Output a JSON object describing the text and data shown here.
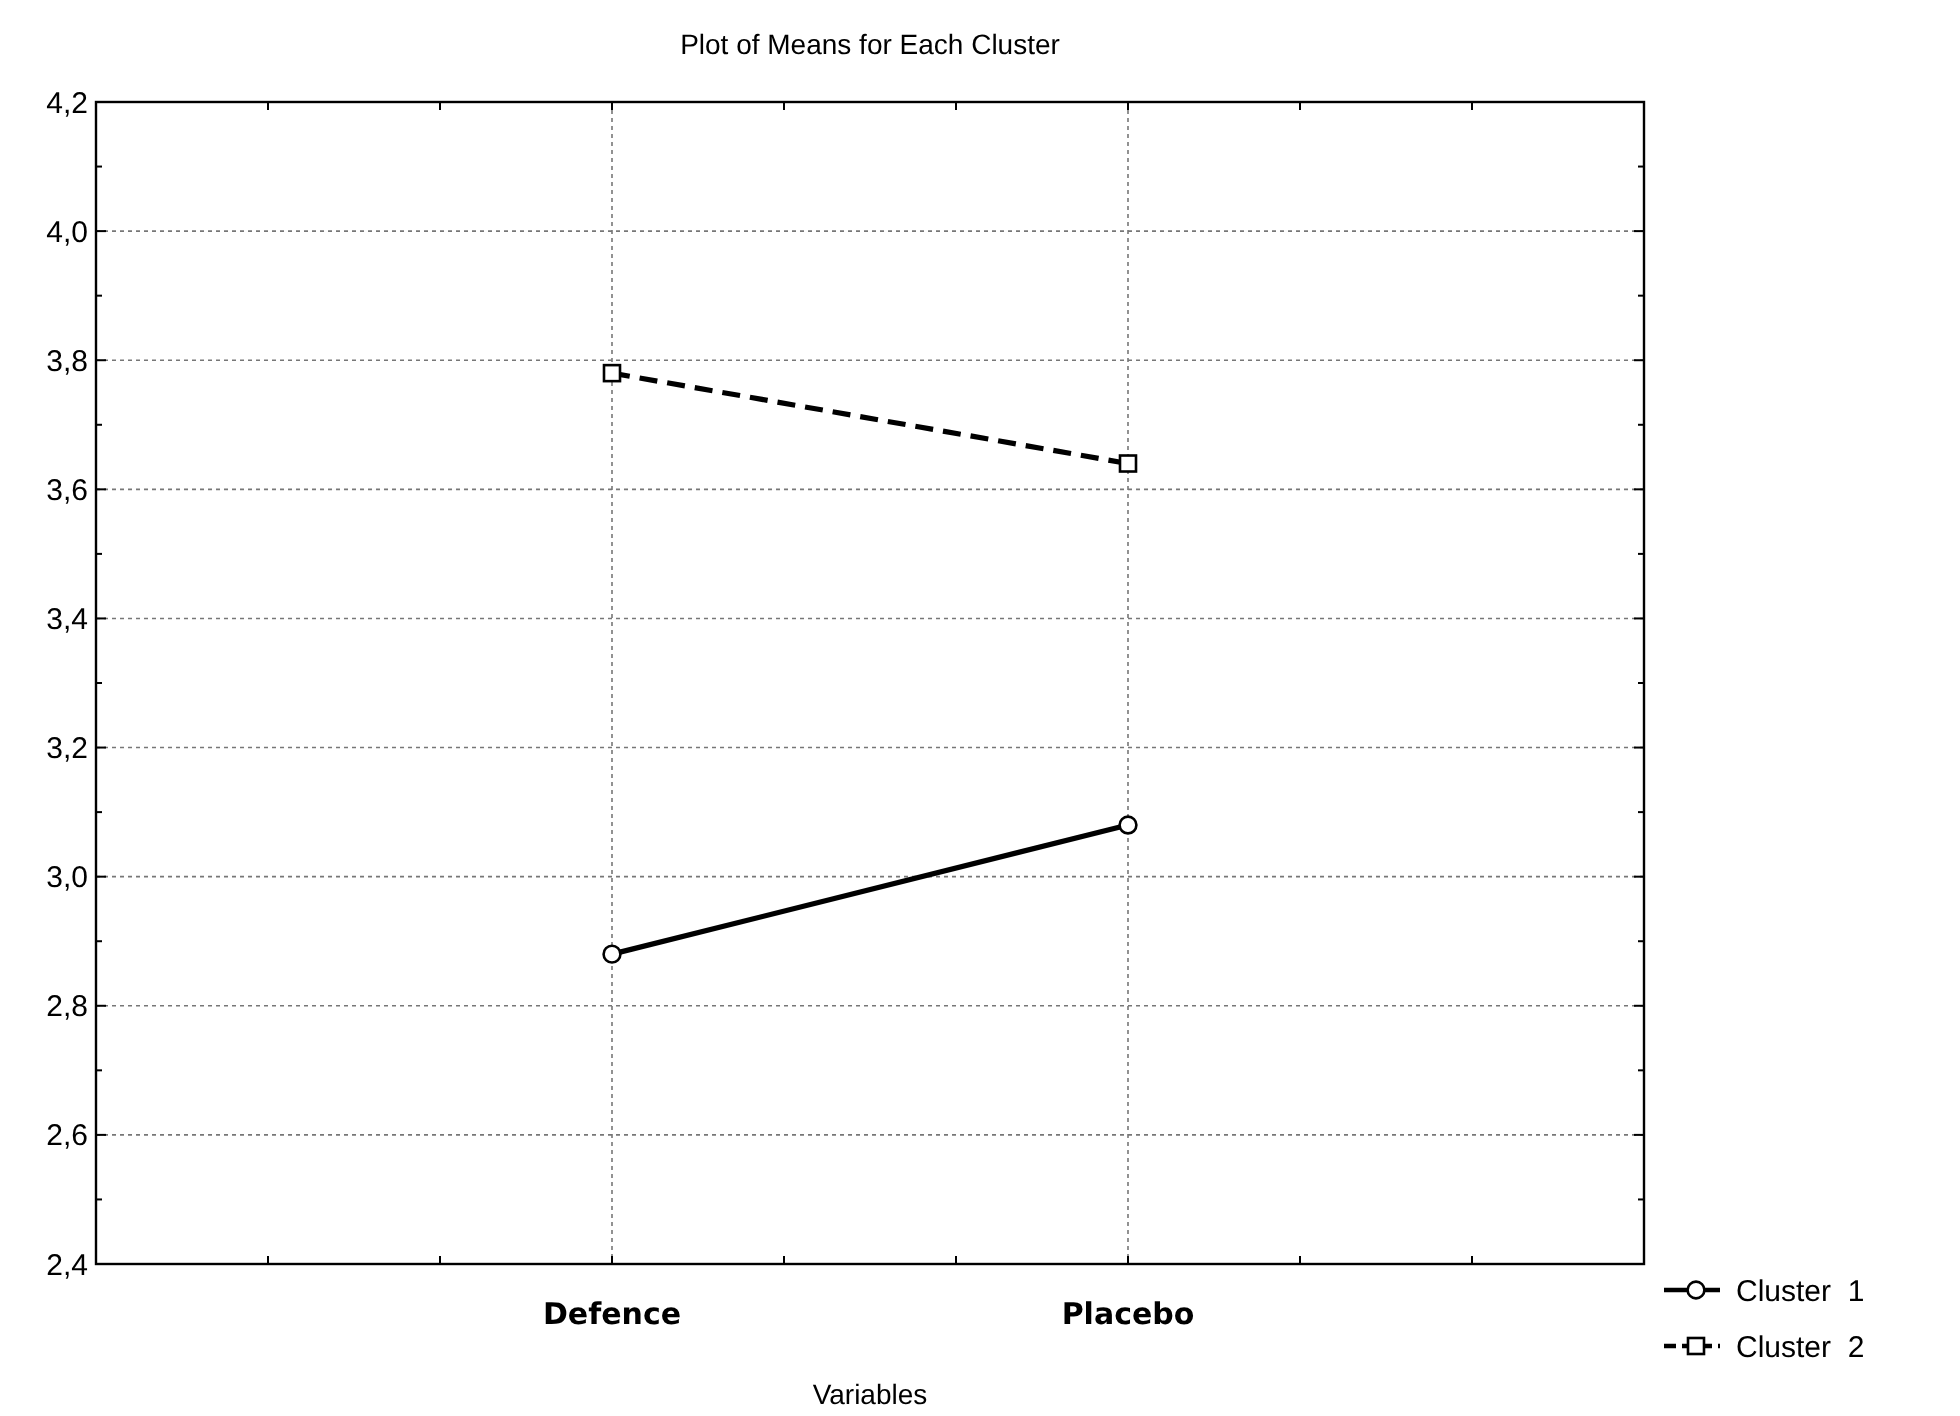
{
  "chart_data": {
    "type": "line",
    "title": "Plot of Means for Each Cluster",
    "xlabel": "Variables",
    "categories": [
      "Defence",
      "Placebo"
    ],
    "series": [
      {
        "name": "Cluster  1",
        "color": "#000000",
        "values": [
          2.88,
          3.08
        ],
        "marker": "circle",
        "line_style": "solid"
      },
      {
        "name": "Cluster  2",
        "color": "#000000",
        "values": [
          3.78,
          3.64
        ],
        "marker": "square",
        "line_style": "dashed"
      }
    ],
    "ylim": [
      2.4,
      4.2
    ],
    "yticks": [
      {
        "value": 2.4,
        "label": "2,4"
      },
      {
        "value": 2.6,
        "label": "2,6"
      },
      {
        "value": 2.8,
        "label": "2,8"
      },
      {
        "value": 3.0,
        "label": "3,0"
      },
      {
        "value": 3.2,
        "label": "3,2"
      },
      {
        "value": 3.4,
        "label": "3,4"
      },
      {
        "value": 3.6,
        "label": "3,6"
      },
      {
        "value": 3.8,
        "label": "3,8"
      },
      {
        "value": 4.0,
        "label": "4,0"
      },
      {
        "value": 4.2,
        "label": "4,2"
      }
    ],
    "grid": true,
    "legend": "bottom right"
  }
}
